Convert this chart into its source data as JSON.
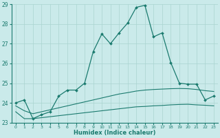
{
  "xlabel": "Humidex (Indice chaleur)",
  "xlim": [
    -0.5,
    23.5
  ],
  "ylim": [
    23,
    29
  ],
  "yticks": [
    23,
    24,
    25,
    26,
    27,
    28,
    29
  ],
  "xticks": [
    0,
    1,
    2,
    3,
    4,
    5,
    6,
    7,
    8,
    9,
    10,
    11,
    12,
    13,
    14,
    15,
    16,
    17,
    18,
    19,
    20,
    21,
    22,
    23
  ],
  "bg_color": "#caeaea",
  "line_color": "#1a7a6e",
  "grid_color": "#aad4d0",
  "main_x": [
    0,
    1,
    2,
    3,
    4,
    5,
    6,
    7,
    8,
    9,
    10,
    11,
    12,
    13,
    14,
    15,
    16,
    17,
    18,
    19,
    20,
    21,
    22,
    23
  ],
  "main_y": [
    24.0,
    24.15,
    23.2,
    23.4,
    23.55,
    24.35,
    24.65,
    24.65,
    25.0,
    26.6,
    27.5,
    27.0,
    27.55,
    28.05,
    28.85,
    28.95,
    27.35,
    27.55,
    26.05,
    25.0,
    24.95,
    24.95,
    24.15,
    24.35
  ],
  "low_x": [
    0,
    1,
    2,
    3,
    4,
    5,
    6,
    7,
    8,
    9,
    10,
    11,
    12,
    13,
    14,
    15,
    16,
    17,
    18,
    19,
    20,
    21,
    22,
    23
  ],
  "low_y": [
    23.55,
    23.2,
    23.2,
    23.25,
    23.3,
    23.35,
    23.4,
    23.45,
    23.5,
    23.55,
    23.6,
    23.65,
    23.7,
    23.75,
    23.8,
    23.82,
    23.85,
    23.87,
    23.9,
    23.92,
    23.93,
    23.9,
    23.88,
    23.85
  ],
  "high_x": [
    0,
    1,
    2,
    3,
    4,
    5,
    6,
    7,
    8,
    9,
    10,
    11,
    12,
    13,
    14,
    15,
    16,
    17,
    18,
    19,
    20,
    21,
    22,
    23
  ],
  "high_y": [
    23.85,
    23.6,
    23.45,
    23.55,
    23.65,
    23.75,
    23.85,
    23.95,
    24.05,
    24.15,
    24.25,
    24.35,
    24.45,
    24.52,
    24.6,
    24.65,
    24.68,
    24.7,
    24.72,
    24.73,
    24.72,
    24.68,
    24.62,
    24.58
  ]
}
